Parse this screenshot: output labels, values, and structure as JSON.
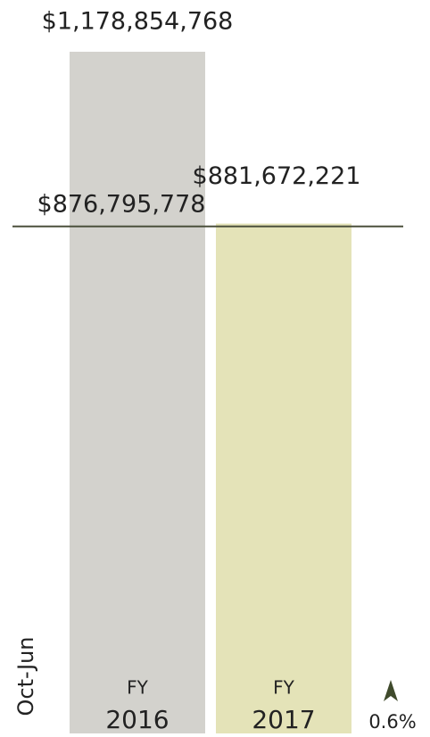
{
  "chart_data": {
    "type": "bar",
    "y_label": "Oct-Jun",
    "categories": [
      [
        "FY",
        "2016"
      ],
      [
        "FY",
        "2017"
      ]
    ],
    "values": [
      1178854768,
      881672221
    ],
    "value_labels": [
      "$1,178,854,768",
      "$881,672,221"
    ],
    "colors": [
      "#d3d2cd",
      "#e4e3b8"
    ],
    "reference": {
      "value": 876795778,
      "label": "$876,795,778",
      "color": "#4b503c"
    },
    "change": {
      "value": 0.6,
      "label": "0.6%",
      "direction": "up",
      "color": "#3f4a2c"
    }
  }
}
